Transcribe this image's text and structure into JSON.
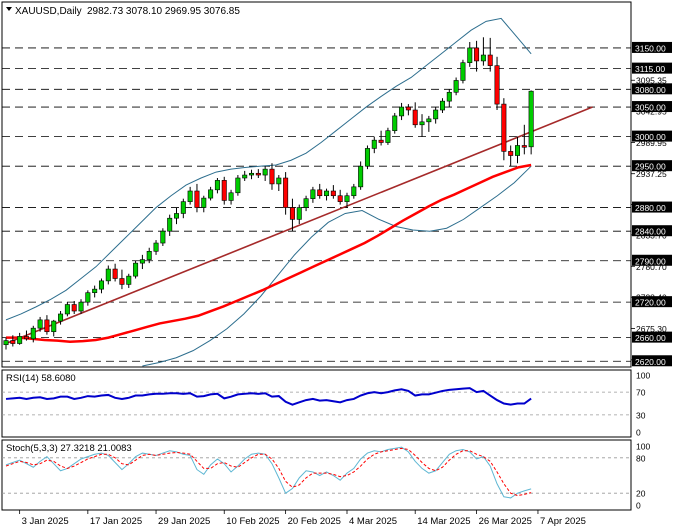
{
  "header": {
    "symbol": "XAUUSD,Daily",
    "ohlc": "2982.73 3078.10 2969.95 3076.85"
  },
  "panels": {
    "rsi_title": "RSI(14) 58.6080",
    "stoch_title": "Stoch(5,3,3) 27.3218 21.0083"
  },
  "colors": {
    "bull_body": "#00cc00",
    "bear_body": "#ff0000",
    "wick": "#000000",
    "bollinger": "#2d6e8e",
    "sma": "#ff0000",
    "trendline": "#a52a2a",
    "rsi_line": "#0000cc",
    "stoch_main": "#5fb7d3",
    "stoch_signal": "#ff0000",
    "level_line": "#000000",
    "label_bg": "#000000",
    "label_text": "#ffffff"
  },
  "chart_data": [
    {
      "type": "candlestick",
      "series_name": "XAUUSD,Daily",
      "ylim": [
        2612,
        3226
      ],
      "y_ticks_plain": [
        "3095.35",
        "3042.95",
        "2989.95",
        "2937.25",
        "2780.70",
        "2675.30"
      ],
      "y_ticks_partial": [
        "2885.35",
        "2833.70",
        "2728.40",
        "2622.40"
      ],
      "levels": [
        3150.0,
        3115.0,
        3080.0,
        3050.0,
        3000.0,
        2950.0,
        2880.0,
        2840.0,
        2790.0,
        2720.0,
        2660.0,
        2620.0
      ],
      "level_labels": [
        "3150.00",
        "3115.00",
        "3080.00",
        "3050.00",
        "3000.00",
        "2950.00",
        "2880.00",
        "2840.00",
        "2790.00",
        "2720.00",
        "2660.00",
        "2620.00"
      ],
      "x_labels": [
        {
          "index": 2,
          "text": "3 Jan 2025"
        },
        {
          "index": 12,
          "text": "17 Jan 2025"
        },
        {
          "index": 22,
          "text": "29 Jan 2025"
        },
        {
          "index": 32,
          "text": "10 Feb 2025"
        },
        {
          "index": 41,
          "text": "20 Feb 2025"
        },
        {
          "index": 50,
          "text": "4 Mar 2025"
        },
        {
          "index": 60,
          "text": "14 Mar 2025"
        },
        {
          "index": 69,
          "text": "26 Mar 2025"
        },
        {
          "index": 78,
          "text": "7 Apr 2025"
        }
      ],
      "candles": [
        [
          2648,
          2660,
          2640,
          2655
        ],
        [
          2655,
          2664,
          2645,
          2650
        ],
        [
          2650,
          2668,
          2648,
          2662
        ],
        [
          2662,
          2672,
          2655,
          2658
        ],
        [
          2658,
          2680,
          2652,
          2676
        ],
        [
          2676,
          2695,
          2670,
          2690
        ],
        [
          2690,
          2698,
          2665,
          2670
        ],
        [
          2670,
          2690,
          2662,
          2688
        ],
        [
          2688,
          2705,
          2682,
          2700
        ],
        [
          2700,
          2720,
          2696,
          2716
        ],
        [
          2716,
          2722,
          2700,
          2705
        ],
        [
          2705,
          2725,
          2700,
          2720
        ],
        [
          2720,
          2740,
          2714,
          2736
        ],
        [
          2736,
          2748,
          2728,
          2742
        ],
        [
          2742,
          2760,
          2735,
          2756
        ],
        [
          2756,
          2782,
          2750,
          2776
        ],
        [
          2776,
          2785,
          2755,
          2760
        ],
        [
          2760,
          2775,
          2742,
          2750
        ],
        [
          2750,
          2768,
          2744,
          2764
        ],
        [
          2764,
          2790,
          2760,
          2786
        ],
        [
          2786,
          2800,
          2776,
          2792
        ],
        [
          2792,
          2812,
          2786,
          2806
        ],
        [
          2806,
          2825,
          2800,
          2820
        ],
        [
          2820,
          2845,
          2815,
          2840
        ],
        [
          2840,
          2868,
          2832,
          2862
        ],
        [
          2862,
          2880,
          2852,
          2870
        ],
        [
          2870,
          2895,
          2862,
          2890
        ],
        [
          2890,
          2915,
          2885,
          2908
        ],
        [
          2908,
          2920,
          2872,
          2880
        ],
        [
          2880,
          2900,
          2872,
          2896
        ],
        [
          2896,
          2915,
          2892,
          2910
        ],
        [
          2910,
          2930,
          2904,
          2926
        ],
        [
          2926,
          2932,
          2885,
          2892
        ],
        [
          2892,
          2910,
          2885,
          2905
        ],
        [
          2905,
          2935,
          2900,
          2930
        ],
        [
          2930,
          2942,
          2925,
          2935
        ],
        [
          2935,
          2944,
          2928,
          2938
        ],
        [
          2938,
          2945,
          2930,
          2935
        ],
        [
          2935,
          2950,
          2925,
          2945
        ],
        [
          2945,
          2955,
          2910,
          2920
        ],
        [
          2920,
          2935,
          2908,
          2930
        ],
        [
          2930,
          2940,
          2868,
          2880
        ],
        [
          2880,
          2895,
          2840,
          2860
        ],
        [
          2860,
          2885,
          2852,
          2880
        ],
        [
          2880,
          2900,
          2874,
          2895
        ],
        [
          2895,
          2915,
          2888,
          2910
        ],
        [
          2910,
          2920,
          2895,
          2900
        ],
        [
          2900,
          2912,
          2892,
          2908
        ],
        [
          2908,
          2918,
          2895,
          2900
        ],
        [
          2900,
          2910,
          2885,
          2890
        ],
        [
          2890,
          2905,
          2880,
          2900
        ],
        [
          2900,
          2920,
          2895,
          2915
        ],
        [
          2915,
          2958,
          2910,
          2950
        ],
        [
          2950,
          2985,
          2945,
          2980
        ],
        [
          2980,
          3000,
          2972,
          2994
        ],
        [
          2994,
          3010,
          2985,
          2990
        ],
        [
          2990,
          3015,
          2986,
          3010
        ],
        [
          3010,
          3040,
          3005,
          3035
        ],
        [
          3035,
          3057,
          3028,
          3050
        ],
        [
          3050,
          3055,
          3036,
          3045
        ],
        [
          3045,
          3058,
          3015,
          3020
        ],
        [
          3020,
          3038,
          3000,
          3025
        ],
        [
          3025,
          3035,
          3008,
          3030
        ],
        [
          3030,
          3050,
          3022,
          3045
        ],
        [
          3045,
          3065,
          3040,
          3060
        ],
        [
          3060,
          3080,
          3050,
          3075
        ],
        [
          3075,
          3100,
          3070,
          3095
        ],
        [
          3095,
          3130,
          3090,
          3125
        ],
        [
          3125,
          3160,
          3118,
          3150
        ],
        [
          3150,
          3162,
          3110,
          3128
        ],
        [
          3128,
          3168,
          3120,
          3138
        ],
        [
          3138,
          3167,
          3110,
          3120
        ],
        [
          3120,
          3135,
          3045,
          3055
        ],
        [
          3055,
          3065,
          2960,
          2975
        ],
        [
          2975,
          2985,
          2950,
          2968
        ],
        [
          2968,
          3000,
          2955,
          2985
        ],
        [
          2985,
          3020,
          2970,
          2982
        ],
        [
          2982.73,
          3078.1,
          2969.95,
          3076.85
        ]
      ],
      "bollinger_upper": [
        2690,
        2700,
        2712,
        2725,
        2740,
        2760,
        2780,
        2805,
        2830,
        2855,
        2880,
        2900,
        2918,
        2930,
        2940,
        2945,
        2948,
        2950,
        2952,
        2960,
        2972,
        2990,
        3010,
        3030,
        3050,
        3068,
        3085,
        3100,
        3120,
        3140,
        3160,
        3180,
        3195,
        3200,
        3170,
        3140
      ],
      "bollinger_lower": [
        2612,
        2618,
        2626,
        2638,
        2655,
        2675,
        2700,
        2730,
        2765,
        2800,
        2830,
        2855,
        2870,
        2875,
        2860,
        2848,
        2842,
        2840,
        2845,
        2860,
        2880,
        2900,
        2922,
        2950
      ],
      "sma": [
        2660,
        2660,
        2658,
        2656,
        2655,
        2653,
        2654,
        2656,
        2660,
        2666,
        2672,
        2678,
        2684,
        2688,
        2692,
        2697,
        2705,
        2713,
        2722,
        2731,
        2740,
        2750,
        2760,
        2770,
        2780,
        2790,
        2800,
        2810,
        2820,
        2832,
        2845,
        2858,
        2870,
        2882,
        2893,
        2902,
        2912,
        2922,
        2932,
        2940,
        2948,
        2952
      ],
      "trendline": {
        "from": [
          0,
          2650
        ],
        "to": [
          86,
          3050
        ]
      },
      "rsi": {
        "ylim": [
          0,
          100
        ],
        "levels": [
          30,
          70
        ],
        "ticks": [
          "100",
          "70",
          "30",
          "0"
        ],
        "values": [
          58,
          59,
          60,
          58,
          60,
          61,
          58,
          59,
          62,
          62,
          58,
          60,
          63,
          62,
          64,
          65,
          60,
          58,
          60,
          64,
          64,
          66,
          67,
          67,
          68,
          68,
          67,
          68,
          62,
          63,
          66,
          67,
          59,
          62,
          66,
          67,
          68,
          67,
          68,
          62,
          63,
          53,
          48,
          52,
          56,
          58,
          55,
          56,
          54,
          52,
          56,
          58,
          64,
          68,
          70,
          68,
          70,
          73,
          75,
          72,
          64,
          66,
          66,
          69,
          72,
          74,
          75,
          76,
          77,
          70,
          72,
          64,
          56,
          50,
          48,
          50,
          50,
          58.608
        ]
      },
      "stoch": {
        "ylim": [
          0,
          100
        ],
        "levels": [
          20,
          80
        ],
        "ticks": [
          "100",
          "80",
          "20",
          "0"
        ],
        "main": [
          68,
          72,
          76,
          70,
          64,
          74,
          82,
          70,
          58,
          62,
          70,
          78,
          82,
          86,
          88,
          84,
          72,
          60,
          70,
          82,
          88,
          86,
          84,
          88,
          92,
          90,
          86,
          84,
          60,
          52,
          68,
          78,
          70,
          56,
          66,
          78,
          86,
          88,
          86,
          70,
          46,
          20,
          28,
          46,
          58,
          56,
          50,
          56,
          50,
          42,
          54,
          62,
          78,
          88,
          92,
          90,
          94,
          96,
          98,
          90,
          74,
          62,
          54,
          58,
          72,
          86,
          92,
          94,
          90,
          78,
          82,
          66,
          36,
          14,
          12,
          20,
          24,
          27.3218
        ],
        "signal": [
          66,
          70,
          74,
          72,
          68,
          70,
          76,
          74,
          66,
          62,
          66,
          72,
          78,
          82,
          86,
          86,
          80,
          70,
          68,
          76,
          84,
          86,
          84,
          86,
          88,
          89,
          88,
          86,
          74,
          62,
          62,
          70,
          72,
          66,
          64,
          72,
          80,
          86,
          86,
          78,
          62,
          40,
          30,
          34,
          46,
          54,
          54,
          54,
          52,
          48,
          50,
          56,
          66,
          78,
          86,
          90,
          92,
          94,
          96,
          94,
          84,
          72,
          62,
          58,
          64,
          76,
          86,
          92,
          92,
          86,
          82,
          74,
          56,
          36,
          20,
          16,
          18,
          21.0083
        ]
      }
    }
  ]
}
